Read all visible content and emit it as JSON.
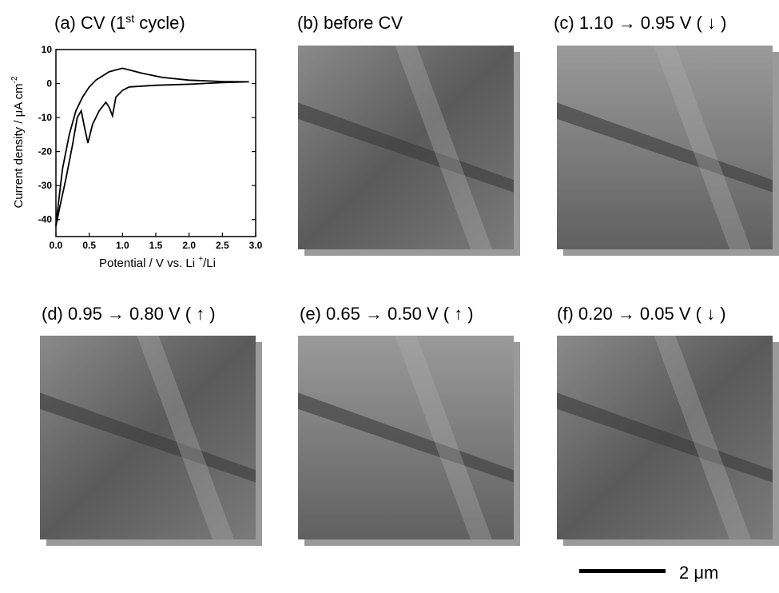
{
  "chart_data": {
    "type": "line",
    "title_parts": [
      "(a) CV (1",
      "st",
      " cycle)"
    ],
    "ylabel_parts": [
      "Current density / μA cm",
      "-2"
    ],
    "xlabel_parts": [
      "Potential / V vs. Li ",
      "+",
      "/Li"
    ],
    "x": [
      2.9,
      2.5,
      2.0,
      1.5,
      1.1,
      1.0,
      0.9,
      0.85,
      0.8,
      0.75,
      0.65,
      0.55,
      0.48,
      0.42,
      0.38,
      0.32,
      0.25,
      0.15,
      0.05,
      0.0,
      0.02,
      0.1,
      0.2,
      0.3,
      0.4,
      0.5,
      0.6,
      0.8,
      1.0,
      1.1,
      1.3,
      1.6,
      2.0,
      2.5,
      2.9
    ],
    "values": [
      0.5,
      0.3,
      -0.2,
      -0.5,
      -1,
      -2,
      -4,
      -9.5,
      -7,
      -5.5,
      -8,
      -12,
      -17.5,
      -12,
      -8,
      -10,
      -18,
      -28,
      -37,
      -42,
      -38,
      -25,
      -15,
      -8,
      -4,
      -1,
      1,
      3.5,
      4.5,
      4,
      3,
      1.8,
      1,
      0.6,
      0.5
    ],
    "color": "#000000",
    "xlim": [
      0,
      3.0
    ],
    "xticks": [
      {
        "value": 0,
        "label": "0.0"
      },
      0.5,
      {
        "value": 1,
        "label": "1.0"
      },
      1.5,
      {
        "value": 2,
        "label": "2.0"
      },
      2.5,
      {
        "value": 3,
        "label": "3.0"
      }
    ],
    "ylim": [
      -45,
      10
    ],
    "yticks": [
      10,
      0,
      -10,
      -20,
      -30,
      -40
    ]
  },
  "panels": [
    "(b) before CV",
    "(c) 1.10 → 0.95 V ( ↓ )",
    "(d) 0.95 → 0.80 V ( ↑ )",
    "(e) 0.65 → 0.50 V ( ↑ )",
    "(f) 0.20 → 0.05 V ( ↓ )"
  ],
  "scale_bar": "2 μm"
}
